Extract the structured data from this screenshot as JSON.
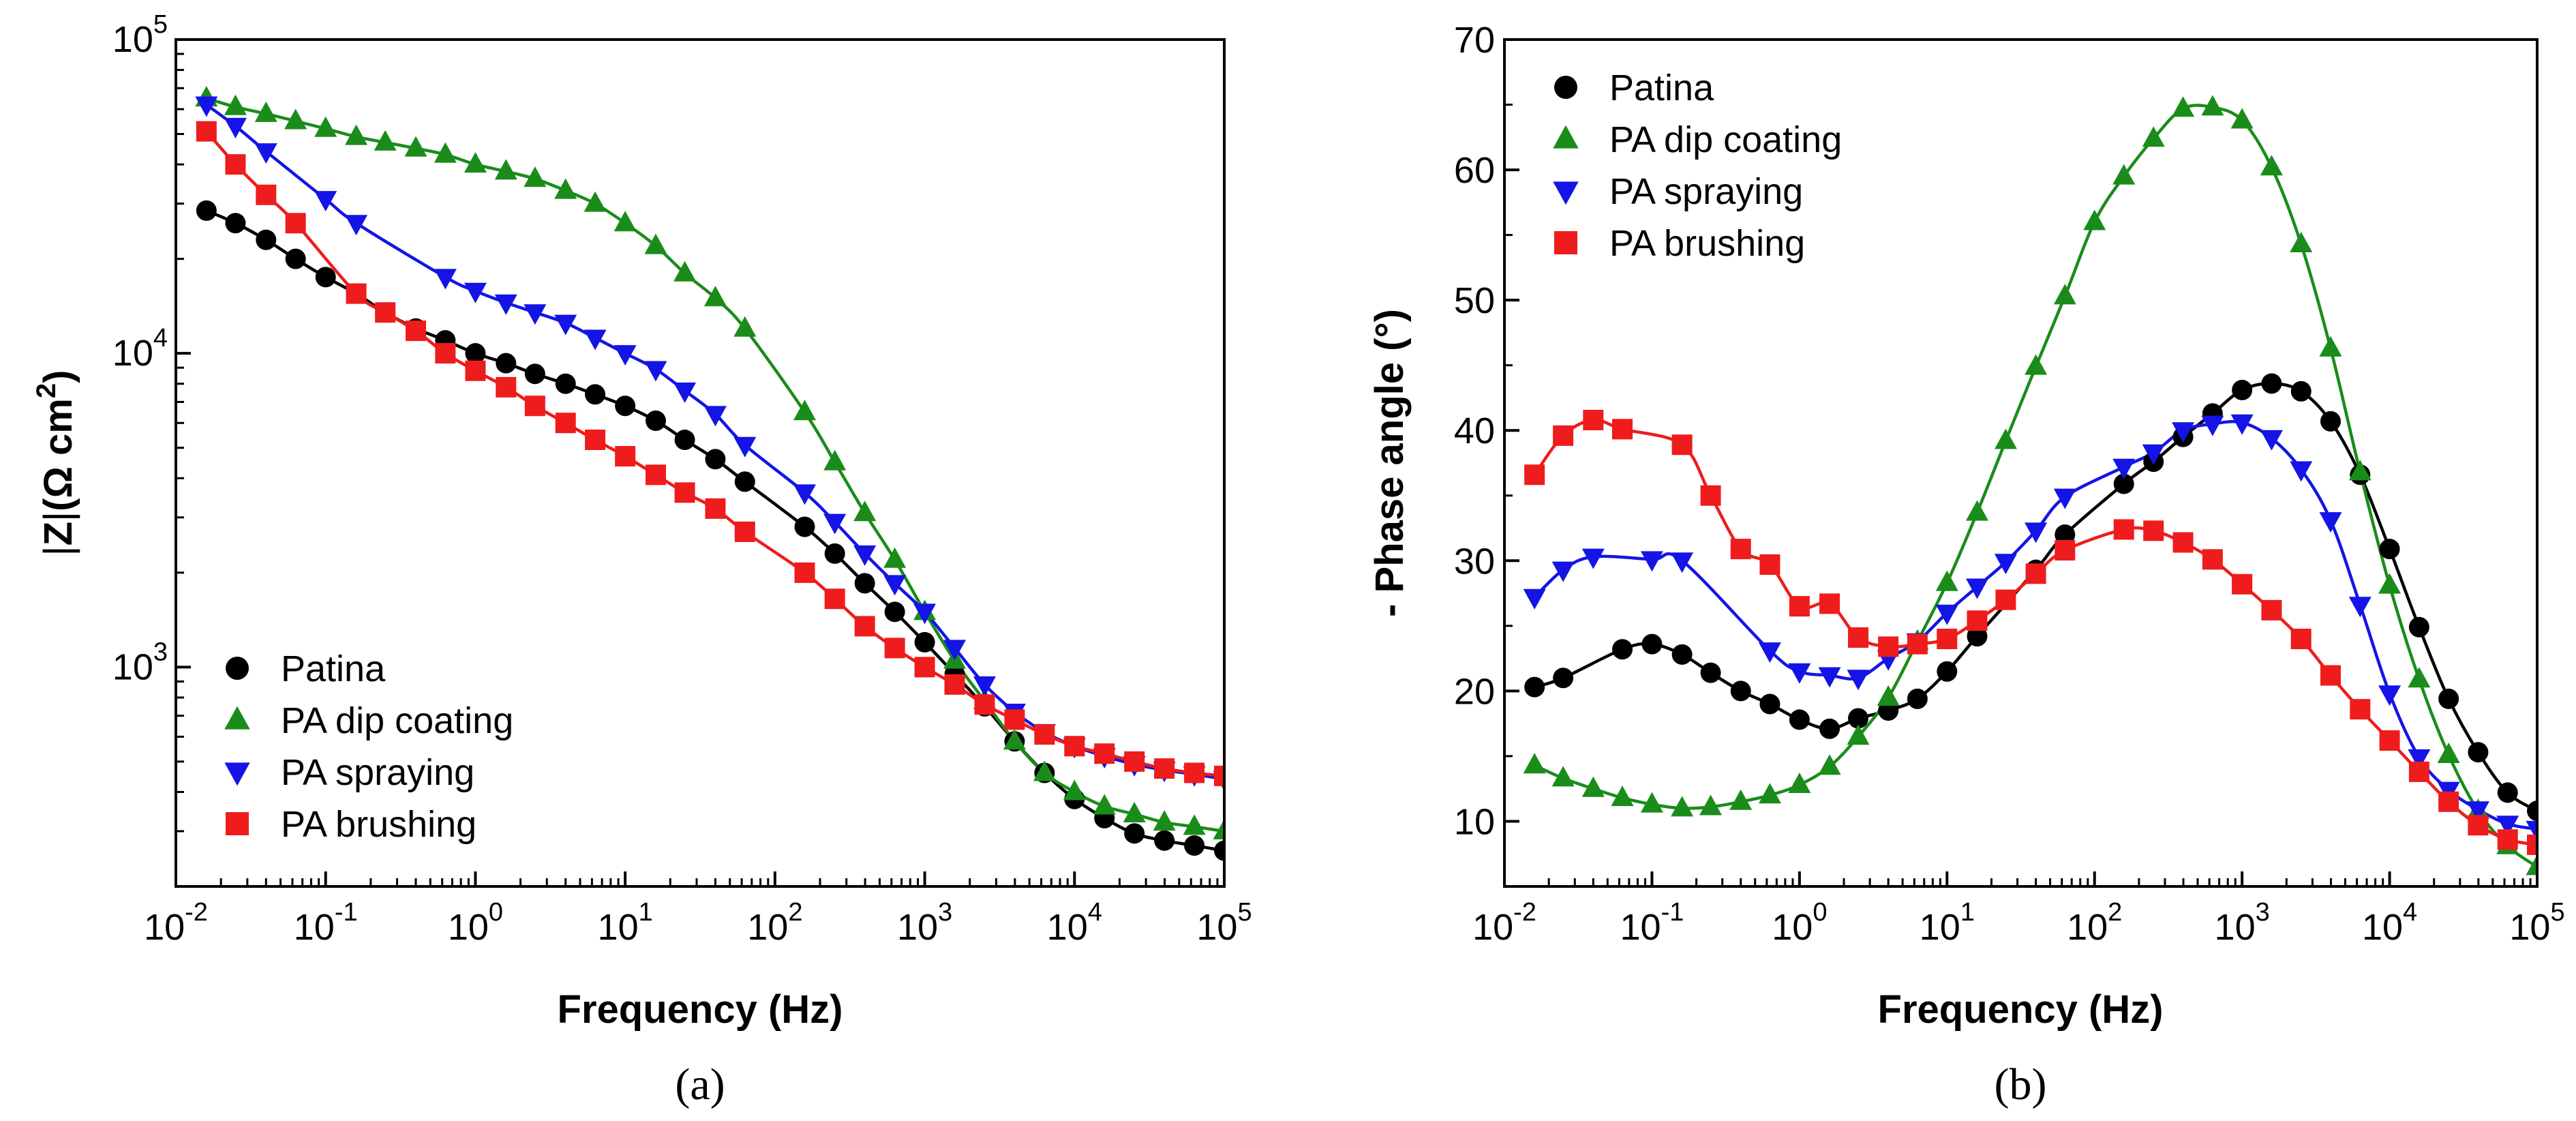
{
  "colors": {
    "patina": "#000000",
    "dip": "#1a8c1a",
    "spray": "#1414e6",
    "brush": "#ee1c1c"
  },
  "chart_data": [
    {
      "id": "a",
      "type": "scatter",
      "caption": "(a)",
      "title": "",
      "xlabel": "Frequency (Hz)",
      "ylabel": "|Z|(Ω cm²)",
      "ylabel_parts": {
        "z_left": "|",
        "z": "Z",
        "z_right": "|",
        "unit_open": "(Ω cm",
        "exp": "2",
        "unit_close": ")"
      },
      "xscale": "log",
      "yscale": "log",
      "xlim": [
        0.01,
        100000
      ],
      "ylim": [
        200,
        100000
      ],
      "xticks": [
        {
          "value": 0.01,
          "base": "10",
          "exp": "-2"
        },
        {
          "value": 0.1,
          "base": "10",
          "exp": "-1"
        },
        {
          "value": 1,
          "base": "10",
          "exp": "0"
        },
        {
          "value": 10,
          "base": "10",
          "exp": "1"
        },
        {
          "value": 100,
          "base": "10",
          "exp": "2"
        },
        {
          "value": 1000,
          "base": "10",
          "exp": "3"
        },
        {
          "value": 10000,
          "base": "10",
          "exp": "4"
        },
        {
          "value": 100000,
          "base": "10",
          "exp": "5"
        }
      ],
      "yticks": [
        {
          "value": 1000,
          "base": "10",
          "exp": "3"
        },
        {
          "value": 10000,
          "base": "10",
          "exp": "4"
        },
        {
          "value": 100000,
          "base": "10",
          "exp": "5"
        }
      ],
      "legend_position": "bottom-left",
      "series": [
        {
          "name": "Patina",
          "key": "patina",
          "marker": "circle",
          "x": [
            0.016,
            0.025,
            0.04,
            0.063,
            0.1,
            0.16,
            0.25,
            0.4,
            0.63,
            1,
            1.6,
            2.5,
            4,
            6.3,
            10,
            16,
            25,
            40,
            63,
            158,
            251,
            398,
            631,
            1000,
            1585,
            2512,
            3981,
            6310,
            10000,
            15850,
            25120,
            39810,
            63100,
            100000
          ],
          "y": [
            28500,
            26000,
            23000,
            20000,
            17500,
            15500,
            13500,
            12000,
            11000,
            10000,
            9300,
            8600,
            8000,
            7400,
            6800,
            6100,
            5300,
            4600,
            3900,
            2800,
            2300,
            1850,
            1500,
            1200,
            950,
            750,
            580,
            460,
            380,
            330,
            295,
            280,
            270,
            260
          ]
        },
        {
          "name": "PA dip coating",
          "key": "dip",
          "marker": "triangle-up",
          "x": [
            0.016,
            0.025,
            0.04,
            0.063,
            0.1,
            0.16,
            0.25,
            0.4,
            0.63,
            1,
            1.6,
            2.5,
            4,
            6.3,
            10,
            16,
            25,
            40,
            63,
            158,
            251,
            398,
            631,
            1000,
            1585,
            2512,
            3981,
            6310,
            10000,
            15850,
            25120,
            39810,
            63100,
            100000
          ],
          "y": [
            65000,
            61000,
            58000,
            55000,
            52000,
            49000,
            47000,
            45000,
            43000,
            40000,
            38000,
            36000,
            33000,
            30000,
            26000,
            22000,
            18000,
            15000,
            12000,
            6500,
            4500,
            3100,
            2200,
            1500,
            1050,
            780,
            580,
            460,
            400,
            360,
            340,
            320,
            310,
            300
          ]
        },
        {
          "name": "PA spraying",
          "key": "spray",
          "marker": "triangle-down",
          "x": [
            0.016,
            0.025,
            0.04,
            0.1,
            0.16,
            0.63,
            1,
            1.6,
            2.5,
            4,
            6.3,
            10,
            16,
            25,
            40,
            63,
            158,
            251,
            398,
            631,
            1000,
            1585,
            2512,
            3981,
            6310,
            10000,
            15850,
            25120,
            39810,
            63100,
            100000
          ],
          "y": [
            62000,
            53000,
            44000,
            31000,
            26000,
            17500,
            15800,
            14500,
            13500,
            12500,
            11200,
            10000,
            8900,
            7600,
            6400,
            5100,
            3600,
            2900,
            2300,
            1850,
            1500,
            1150,
            880,
            720,
            620,
            560,
            520,
            490,
            470,
            455,
            440
          ]
        },
        {
          "name": "PA brushing",
          "key": "brush",
          "marker": "square",
          "x": [
            0.016,
            0.025,
            0.04,
            0.063,
            0.16,
            0.25,
            0.4,
            0.63,
            1,
            1.6,
            2.5,
            4,
            6.3,
            10,
            16,
            25,
            40,
            63,
            158,
            251,
            398,
            631,
            1000,
            1585,
            2512,
            3981,
            6310,
            10000,
            15850,
            25120,
            39810,
            63100,
            100000
          ],
          "y": [
            51000,
            40000,
            32000,
            26000,
            15500,
            13500,
            11800,
            10000,
            8800,
            7800,
            6800,
            6000,
            5300,
            4700,
            4100,
            3600,
            3200,
            2700,
            2000,
            1650,
            1350,
            1150,
            1000,
            880,
            760,
            680,
            610,
            560,
            530,
            500,
            475,
            460,
            450
          ]
        }
      ]
    },
    {
      "id": "b",
      "type": "scatter",
      "caption": "(b)",
      "title": "",
      "xlabel": "Frequency (Hz)",
      "ylabel": "- Phase angle (°)",
      "xscale": "log",
      "yscale": "linear",
      "xlim": [
        0.01,
        100000
      ],
      "ylim": [
        5,
        70
      ],
      "xticks": [
        {
          "value": 0.01,
          "base": "10",
          "exp": "-2"
        },
        {
          "value": 0.1,
          "base": "10",
          "exp": "-1"
        },
        {
          "value": 1,
          "base": "10",
          "exp": "0"
        },
        {
          "value": 10,
          "base": "10",
          "exp": "1"
        },
        {
          "value": 100,
          "base": "10",
          "exp": "2"
        },
        {
          "value": 1000,
          "base": "10",
          "exp": "3"
        },
        {
          "value": 10000,
          "base": "10",
          "exp": "4"
        },
        {
          "value": 100000,
          "base": "10",
          "exp": "5"
        }
      ],
      "yticks": [
        10,
        20,
        30,
        40,
        50,
        60,
        70
      ],
      "legend_position": "top-left",
      "series": [
        {
          "name": "Patina",
          "key": "patina",
          "marker": "circle",
          "x": [
            0.016,
            0.025,
            0.063,
            0.1,
            0.16,
            0.25,
            0.4,
            0.63,
            1,
            1.6,
            2.5,
            4,
            6.3,
            10,
            16,
            40,
            63,
            158,
            251,
            398,
            631,
            1000,
            1585,
            2512,
            3981,
            6310,
            10000,
            15850,
            25120,
            39810,
            63100,
            100000
          ],
          "y": [
            20.3,
            21,
            23.2,
            23.6,
            22.8,
            21.4,
            20,
            19,
            17.8,
            17.1,
            17.9,
            18.5,
            19.4,
            21.5,
            24.2,
            29.3,
            32,
            35.9,
            37.6,
            39.5,
            41.3,
            43.1,
            43.6,
            43,
            40.7,
            36.6,
            30.9,
            24.9,
            19.4,
            15.3,
            12.2,
            10.8
          ]
        },
        {
          "name": "PA dip coating",
          "key": "dip",
          "marker": "triangle-up",
          "x": [
            0.016,
            0.025,
            0.04,
            0.063,
            0.1,
            0.16,
            0.25,
            0.4,
            0.63,
            1,
            1.6,
            2.5,
            4,
            6.3,
            10,
            16,
            25,
            40,
            63,
            100,
            158,
            251,
            398,
            631,
            1000,
            1585,
            2512,
            3981,
            6310,
            10000,
            15850,
            25120,
            39810,
            63100,
            100000
          ],
          "y": [
            14.3,
            13.3,
            12.5,
            11.8,
            11.3,
            11,
            11.1,
            11.5,
            12,
            12.8,
            14.2,
            16.5,
            19.5,
            23.8,
            28.3,
            33.7,
            39.2,
            44.9,
            50.3,
            56,
            59.5,
            62.4,
            64.7,
            64.8,
            63.8,
            60.2,
            54.3,
            46.3,
            36.8,
            28.1,
            20.9,
            15.1,
            10.8,
            8.1,
            6.5
          ]
        },
        {
          "name": "PA spraying",
          "key": "spray",
          "marker": "triangle-down",
          "x": [
            0.016,
            0.025,
            0.04,
            0.1,
            0.16,
            0.63,
            1,
            1.6,
            2.5,
            4,
            6.3,
            10,
            16,
            25,
            40,
            63,
            158,
            251,
            398,
            631,
            1000,
            1585,
            2512,
            3981,
            6310,
            10000,
            15850,
            25120,
            39810,
            63100,
            100000
          ],
          "y": [
            27.2,
            29.3,
            30.3,
            30.1,
            30,
            23.1,
            21.5,
            21.2,
            21,
            22.5,
            23.8,
            26,
            28,
            29.9,
            32.3,
            34.9,
            37.2,
            38.3,
            40,
            40.5,
            40.6,
            39.4,
            37,
            33.1,
            26.6,
            19.8,
            14.9,
            12.4,
            10.9,
            9.8,
            9.4
          ]
        },
        {
          "name": "PA brushing",
          "key": "brush",
          "marker": "square",
          "x": [
            0.016,
            0.025,
            0.04,
            0.063,
            0.16,
            0.25,
            0.4,
            0.63,
            1,
            1.6,
            2.5,
            4,
            6.3,
            10,
            16,
            25,
            40,
            63,
            158,
            251,
            398,
            631,
            1000,
            1585,
            2512,
            3981,
            6310,
            10000,
            15850,
            25120,
            39810,
            63100,
            100000
          ],
          "y": [
            36.6,
            39.6,
            40.8,
            40.1,
            38.9,
            35,
            30.9,
            29.7,
            26.5,
            26.7,
            24.1,
            23.4,
            23.6,
            24,
            25.4,
            27,
            29,
            30.8,
            32.4,
            32.3,
            31.4,
            30.1,
            28.2,
            26.2,
            24,
            21.2,
            18.6,
            16.2,
            13.8,
            11.5,
            9.7,
            8.6,
            8.2
          ]
        }
      ]
    }
  ]
}
